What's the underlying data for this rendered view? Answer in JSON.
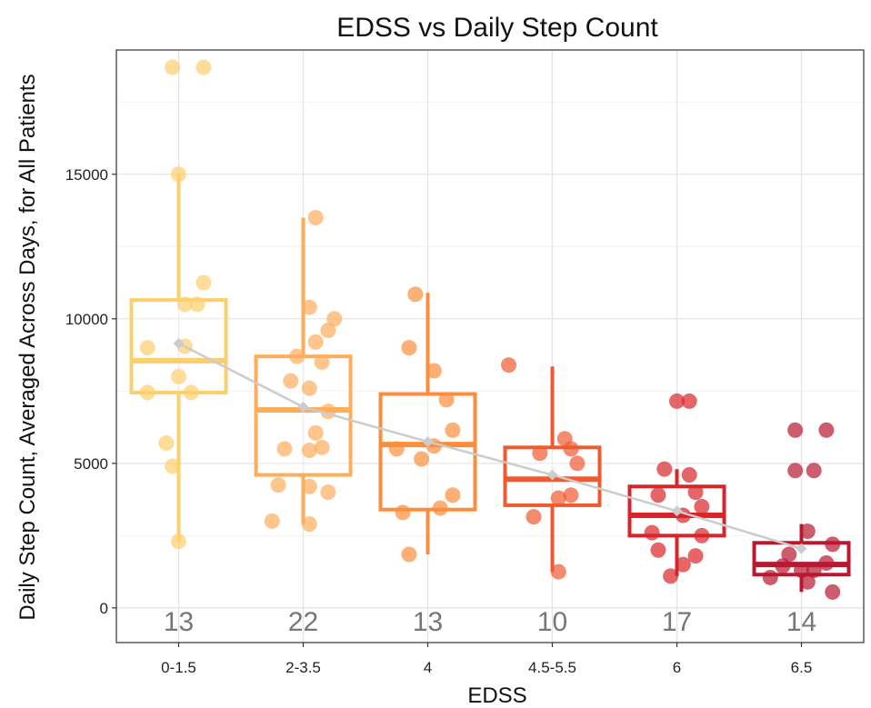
{
  "chart_data": {
    "type": "box",
    "title": "EDSS vs Daily Step Count",
    "xlabel": "EDSS",
    "ylabel": "Daily Step Count, Averaged Across Days, for All Patients",
    "ylim": [
      -1200,
      19300
    ],
    "yticks": [
      0,
      5000,
      10000,
      15000
    ],
    "grid": true,
    "legend": "none",
    "categories": [
      "0-1.5",
      "2-3.5",
      "4",
      "4.5-5.5",
      "6",
      "6.5"
    ],
    "counts": [
      "13",
      "22",
      "13",
      "10",
      "17",
      "14"
    ],
    "colors": [
      "#fdcf6c",
      "#fdae5b",
      "#fc8d3c",
      "#f05a30",
      "#d8252a",
      "#b81830"
    ],
    "mean_line_color": "#cccccc",
    "boxes": [
      {
        "whisker_low": 2300,
        "q1": 7450,
        "median": 8550,
        "q3": 10650,
        "whisker_high": 15000,
        "mean": 9150
      },
      {
        "whisker_low": 2900,
        "q1": 4600,
        "median": 6850,
        "q3": 8700,
        "whisker_high": 13500,
        "mean": 6950
      },
      {
        "whisker_low": 1850,
        "q1": 3400,
        "median": 5650,
        "q3": 7400,
        "whisker_high": 10900,
        "mean": 5750
      },
      {
        "whisker_low": 1250,
        "q1": 3550,
        "median": 4450,
        "q3": 5550,
        "whisker_high": 8350,
        "mean": 4600
      },
      {
        "whisker_low": 1100,
        "q1": 2500,
        "median": 3200,
        "q3": 4200,
        "whisker_high": 4800,
        "mean": 3350
      },
      {
        "whisker_low": 550,
        "q1": 1150,
        "median": 1500,
        "q3": 2250,
        "whisker_high": 2900,
        "mean": 2050
      }
    ],
    "points": [
      [
        [
          -0.05,
          18700
        ],
        [
          0.2,
          18700
        ],
        [
          0,
          15000
        ],
        [
          0.2,
          11250
        ],
        [
          0.15,
          10500
        ],
        [
          0.05,
          10500
        ],
        [
          -0.25,
          9000
        ],
        [
          0.05,
          9050
        ],
        [
          0,
          8000
        ],
        [
          0.1,
          7450
        ],
        [
          -0.25,
          7450
        ],
        [
          -0.1,
          5700
        ],
        [
          -0.05,
          4900
        ],
        [
          0,
          2300
        ]
      ],
      [
        [
          0.1,
          13500
        ],
        [
          0.25,
          10000
        ],
        [
          0.2,
          9600
        ],
        [
          0.05,
          10400
        ],
        [
          0.1,
          9200
        ],
        [
          -0.05,
          8700
        ],
        [
          0.15,
          8500
        ],
        [
          -0.1,
          7850
        ],
        [
          0.05,
          7600
        ],
        [
          0.2,
          6800
        ],
        [
          0.1,
          6050
        ],
        [
          -0.15,
          5500
        ],
        [
          0.05,
          5450
        ],
        [
          0.15,
          5550
        ],
        [
          -0.2,
          4250
        ],
        [
          0.05,
          4200
        ],
        [
          0.2,
          4000
        ],
        [
          -0.25,
          3000
        ],
        [
          0.05,
          2900
        ]
      ],
      [
        [
          -0.1,
          10850
        ],
        [
          0.05,
          8200
        ],
        [
          -0.15,
          9000
        ],
        [
          0.15,
          7200
        ],
        [
          0.2,
          6150
        ],
        [
          0.05,
          5600
        ],
        [
          -0.05,
          5150
        ],
        [
          -0.25,
          5500
        ],
        [
          0.2,
          3900
        ],
        [
          0.1,
          3450
        ],
        [
          -0.2,
          3300
        ],
        [
          -0.15,
          1850
        ]
      ],
      [
        [
          -0.35,
          8400
        ],
        [
          0.1,
          5850
        ],
        [
          0.2,
          5000
        ],
        [
          0.15,
          5500
        ],
        [
          -0.1,
          5350
        ],
        [
          0.15,
          3900
        ],
        [
          0.05,
          3800
        ],
        [
          -0.15,
          3150
        ],
        [
          0.05,
          1250
        ]
      ],
      [
        [
          0,
          7150
        ],
        [
          0.1,
          7150
        ],
        [
          -0.1,
          4800
        ],
        [
          0.1,
          4600
        ],
        [
          0.15,
          4000
        ],
        [
          -0.15,
          3900
        ],
        [
          0.2,
          3500
        ],
        [
          0.05,
          3200
        ],
        [
          -0.2,
          2600
        ],
        [
          0.2,
          2500
        ],
        [
          -0.15,
          2000
        ],
        [
          0.15,
          1800
        ],
        [
          0.05,
          1500
        ],
        [
          -0.05,
          1100
        ]
      ],
      [
        [
          -0.05,
          6150
        ],
        [
          0.2,
          6150
        ],
        [
          -0.05,
          4750
        ],
        [
          0.1,
          4750
        ],
        [
          0.05,
          2650
        ],
        [
          0.25,
          2200
        ],
        [
          -0.1,
          1850
        ],
        [
          0.2,
          1550
        ],
        [
          0.1,
          1300
        ],
        [
          -0.15,
          1450
        ],
        [
          0,
          1300
        ],
        [
          -0.25,
          1050
        ],
        [
          0.05,
          900
        ],
        [
          0.25,
          550
        ]
      ]
    ]
  }
}
